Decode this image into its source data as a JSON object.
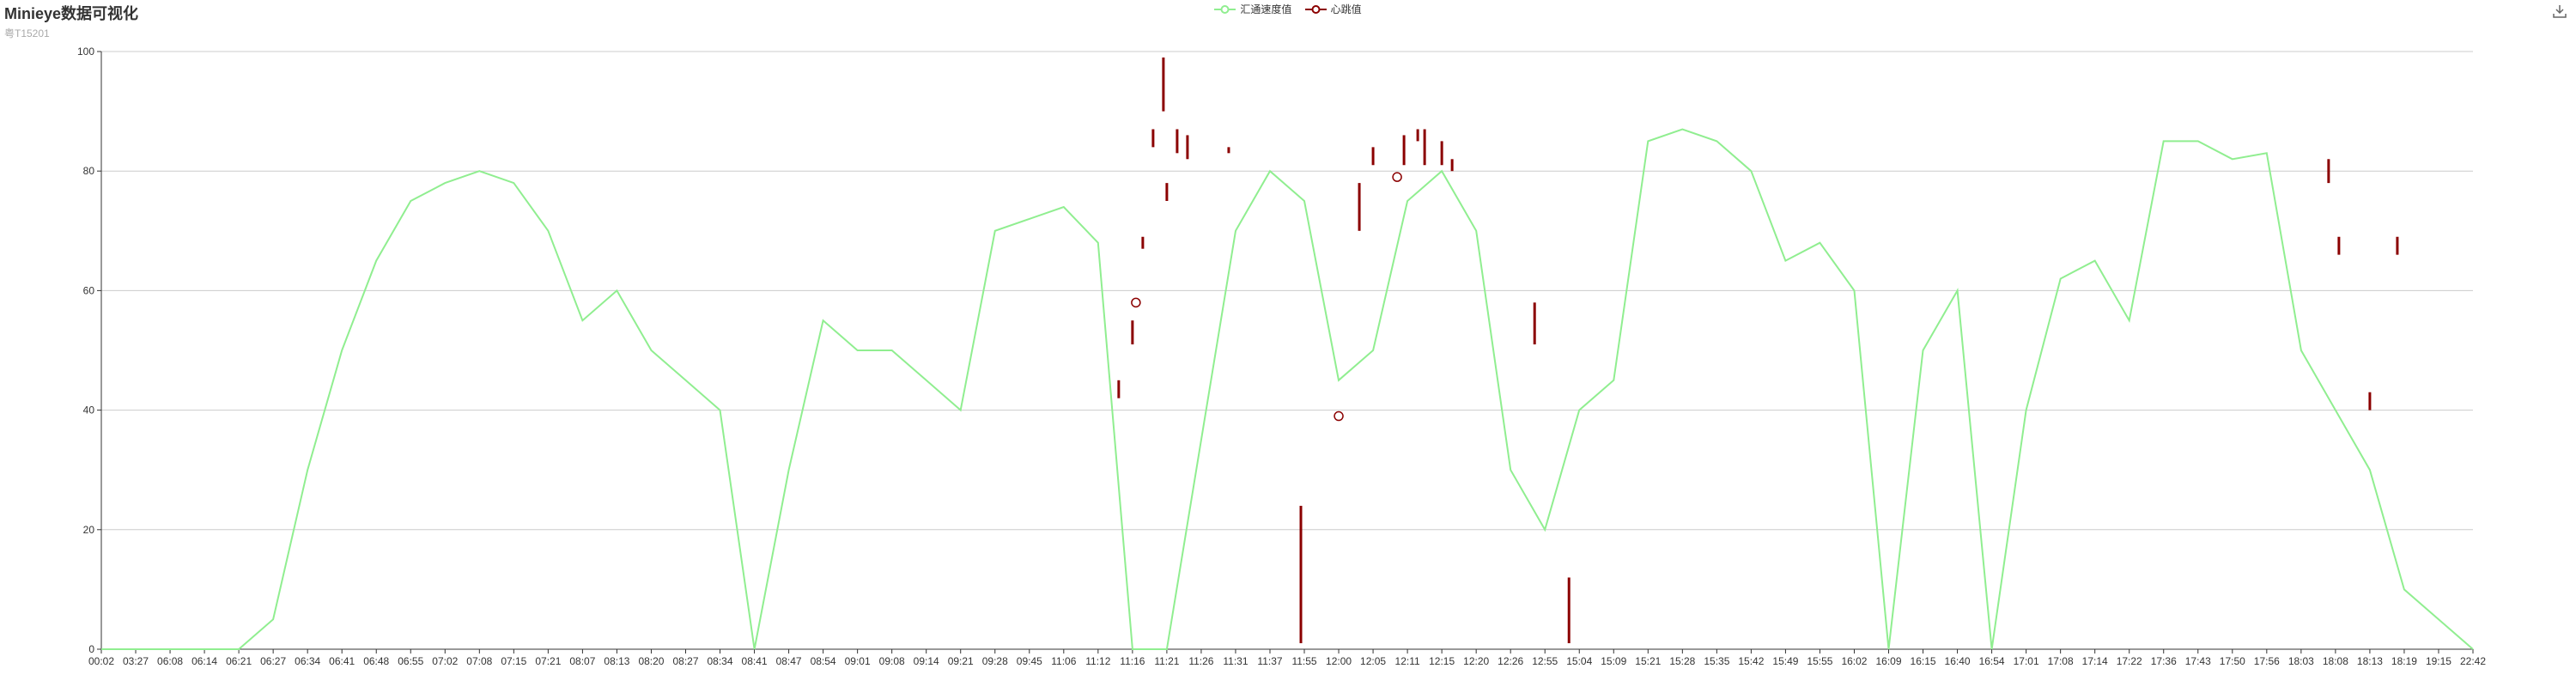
{
  "header": {
    "title": "Minieye数据可视化",
    "subtitle": "粤T15201"
  },
  "toolbox": {
    "icon": "download-icon"
  },
  "chart_data": {
    "type": "line",
    "ylim": [
      0,
      100
    ],
    "yticks": [
      0,
      20,
      40,
      60,
      80,
      100
    ],
    "grid": true,
    "legend_placement": "top-center",
    "x_tick_labels": [
      "00:02",
      "03:27",
      "06:08",
      "06:14",
      "06:21",
      "06:27",
      "06:34",
      "06:41",
      "06:48",
      "06:55",
      "07:02",
      "07:08",
      "07:15",
      "07:21",
      "08:07",
      "08:13",
      "08:20",
      "08:27",
      "08:34",
      "08:41",
      "08:47",
      "08:54",
      "09:01",
      "09:08",
      "09:14",
      "09:21",
      "09:28",
      "09:45",
      "11:06",
      "11:12",
      "11:16",
      "11:21",
      "11:26",
      "11:31",
      "11:37",
      "11:55",
      "12:00",
      "12:05",
      "12:11",
      "12:15",
      "12:20",
      "12:26",
      "12:55",
      "15:04",
      "15:09",
      "15:21",
      "15:28",
      "15:35",
      "15:42",
      "15:49",
      "15:55",
      "16:02",
      "16:09",
      "16:15",
      "16:40",
      "16:54",
      "17:01",
      "17:08",
      "17:14",
      "17:22",
      "17:36",
      "17:43",
      "17:50",
      "17:56",
      "18:03",
      "18:08",
      "18:13",
      "18:19",
      "19:15",
      "22:42"
    ],
    "series": [
      {
        "name": "汇通速度值",
        "color": "#90ee90",
        "x": [
          0,
          2,
          4,
          5,
          6,
          7,
          8,
          9,
          10,
          11,
          12,
          13,
          14,
          15,
          16,
          17,
          18,
          19,
          20,
          21,
          22,
          23,
          24,
          25,
          26,
          27,
          28,
          29,
          30,
          31,
          32,
          33,
          34,
          35,
          36,
          37,
          38,
          39,
          40,
          41,
          42,
          43,
          44,
          45,
          46,
          47,
          48,
          49,
          50,
          51,
          52,
          53,
          54,
          55,
          56,
          57,
          58,
          59,
          60,
          61,
          62,
          63,
          64,
          65,
          66,
          67,
          68,
          69
        ],
        "y": [
          0,
          0,
          0,
          5,
          30,
          50,
          65,
          75,
          78,
          80,
          78,
          70,
          55,
          60,
          50,
          45,
          40,
          0,
          30,
          55,
          50,
          50,
          45,
          40,
          70,
          72,
          74,
          68,
          0,
          0,
          35,
          70,
          80,
          75,
          45,
          50,
          75,
          80,
          70,
          30,
          20,
          40,
          45,
          85,
          87,
          85,
          80,
          65,
          68,
          60,
          0,
          50,
          60,
          0,
          40,
          62,
          65,
          55,
          85,
          85,
          82,
          83,
          50,
          40,
          30,
          10,
          5,
          0
        ]
      },
      {
        "name": "心跳值",
        "color": "#8b0000",
        "segments": [
          {
            "x": 29.6,
            "y": [
              42,
              45
            ]
          },
          {
            "x": 30.0,
            "y": [
              51,
              55
            ]
          },
          {
            "x": 30.3,
            "y": [
              67,
              69
            ]
          },
          {
            "x": 30.6,
            "y": [
              84,
              87
            ]
          },
          {
            "x": 30.9,
            "y": [
              90,
              99
            ]
          },
          {
            "x": 31.0,
            "y": [
              75,
              78
            ]
          },
          {
            "x": 31.3,
            "y": [
              83,
              87
            ]
          },
          {
            "x": 31.6,
            "y": [
              82,
              86
            ]
          },
          {
            "x": 32.8,
            "y": [
              83,
              84
            ]
          },
          {
            "x": 34.9,
            "y": [
              1,
              24
            ]
          },
          {
            "x": 36.6,
            "y": [
              70,
              78
            ]
          },
          {
            "x": 37.0,
            "y": [
              81,
              84
            ]
          },
          {
            "x": 37.9,
            "y": [
              81,
              86
            ]
          },
          {
            "x": 38.3,
            "y": [
              85,
              87
            ]
          },
          {
            "x": 38.5,
            "y": [
              81,
              87
            ]
          },
          {
            "x": 39.0,
            "y": [
              81,
              85
            ]
          },
          {
            "x": 39.3,
            "y": [
              80,
              82
            ]
          },
          {
            "x": 41.7,
            "y": [
              51,
              58
            ]
          },
          {
            "x": 42.7,
            "y": [
              1,
              12
            ]
          },
          {
            "x": 64.8,
            "y": [
              78,
              82
            ]
          },
          {
            "x": 65.1,
            "y": [
              66,
              69
            ]
          },
          {
            "x": 66.0,
            "y": [
              40,
              43
            ]
          },
          {
            "x": 66.8,
            "y": [
              66,
              69
            ]
          }
        ],
        "points": [
          {
            "x": 30.1,
            "y": 58
          },
          {
            "x": 36.0,
            "y": 39
          },
          {
            "x": 37.7,
            "y": 79
          }
        ]
      }
    ]
  }
}
